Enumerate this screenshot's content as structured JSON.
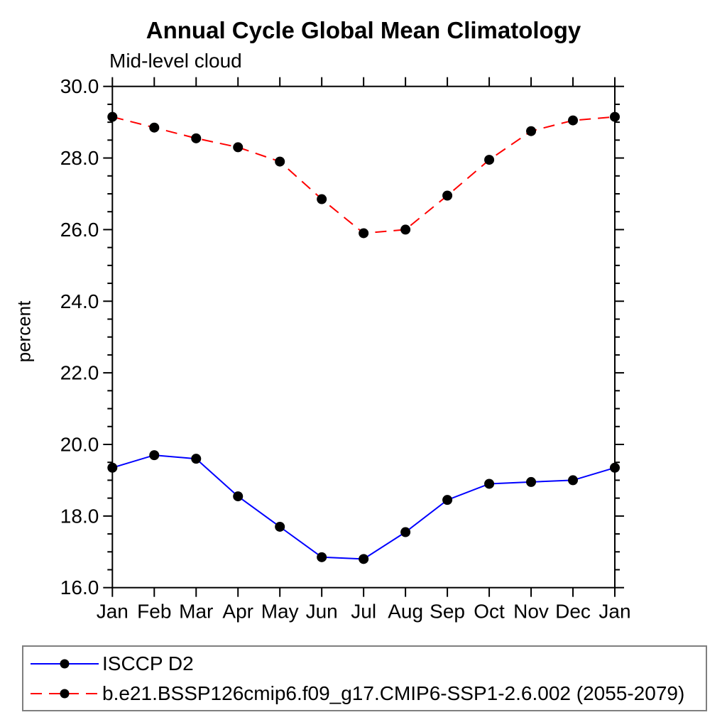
{
  "chart_data": {
    "type": "line",
    "title": "Annual Cycle Global Mean Climatology",
    "subtitle": "Mid-level cloud",
    "ylabel": "percent",
    "xlabel": "",
    "categories": [
      "Jan",
      "Feb",
      "Mar",
      "Apr",
      "May",
      "Jun",
      "Jul",
      "Aug",
      "Sep",
      "Oct",
      "Nov",
      "Dec",
      "Jan"
    ],
    "ylim": [
      16.0,
      30.0
    ],
    "ytick_major_step": 2.0,
    "ytick_minor_step": 0.5,
    "ytick_labels": [
      "16.0",
      "18.0",
      "20.0",
      "22.0",
      "24.0",
      "26.0",
      "28.0",
      "30.0"
    ],
    "grid": "off",
    "legend_position": "bottom-left",
    "frame_color": "#000000",
    "marker_color": "#000000",
    "series": [
      {
        "name": "ISCCP D2",
        "color": "#0000ff",
        "style": "solid",
        "marker": "filled-circle",
        "values": [
          19.35,
          19.7,
          19.6,
          18.55,
          17.7,
          16.85,
          16.8,
          17.55,
          18.45,
          18.9,
          18.95,
          19.0,
          19.35
        ]
      },
      {
        "name": "b.e21.BSSP126cmip6.f09_g17.CMIP6-SSP1-2.6.002 (2055-2079)",
        "color": "#ff0000",
        "style": "dashed",
        "marker": "filled-circle",
        "values": [
          29.15,
          28.85,
          28.55,
          28.3,
          27.9,
          26.85,
          25.9,
          26.0,
          26.95,
          27.95,
          28.75,
          29.05,
          29.15
        ]
      }
    ]
  }
}
